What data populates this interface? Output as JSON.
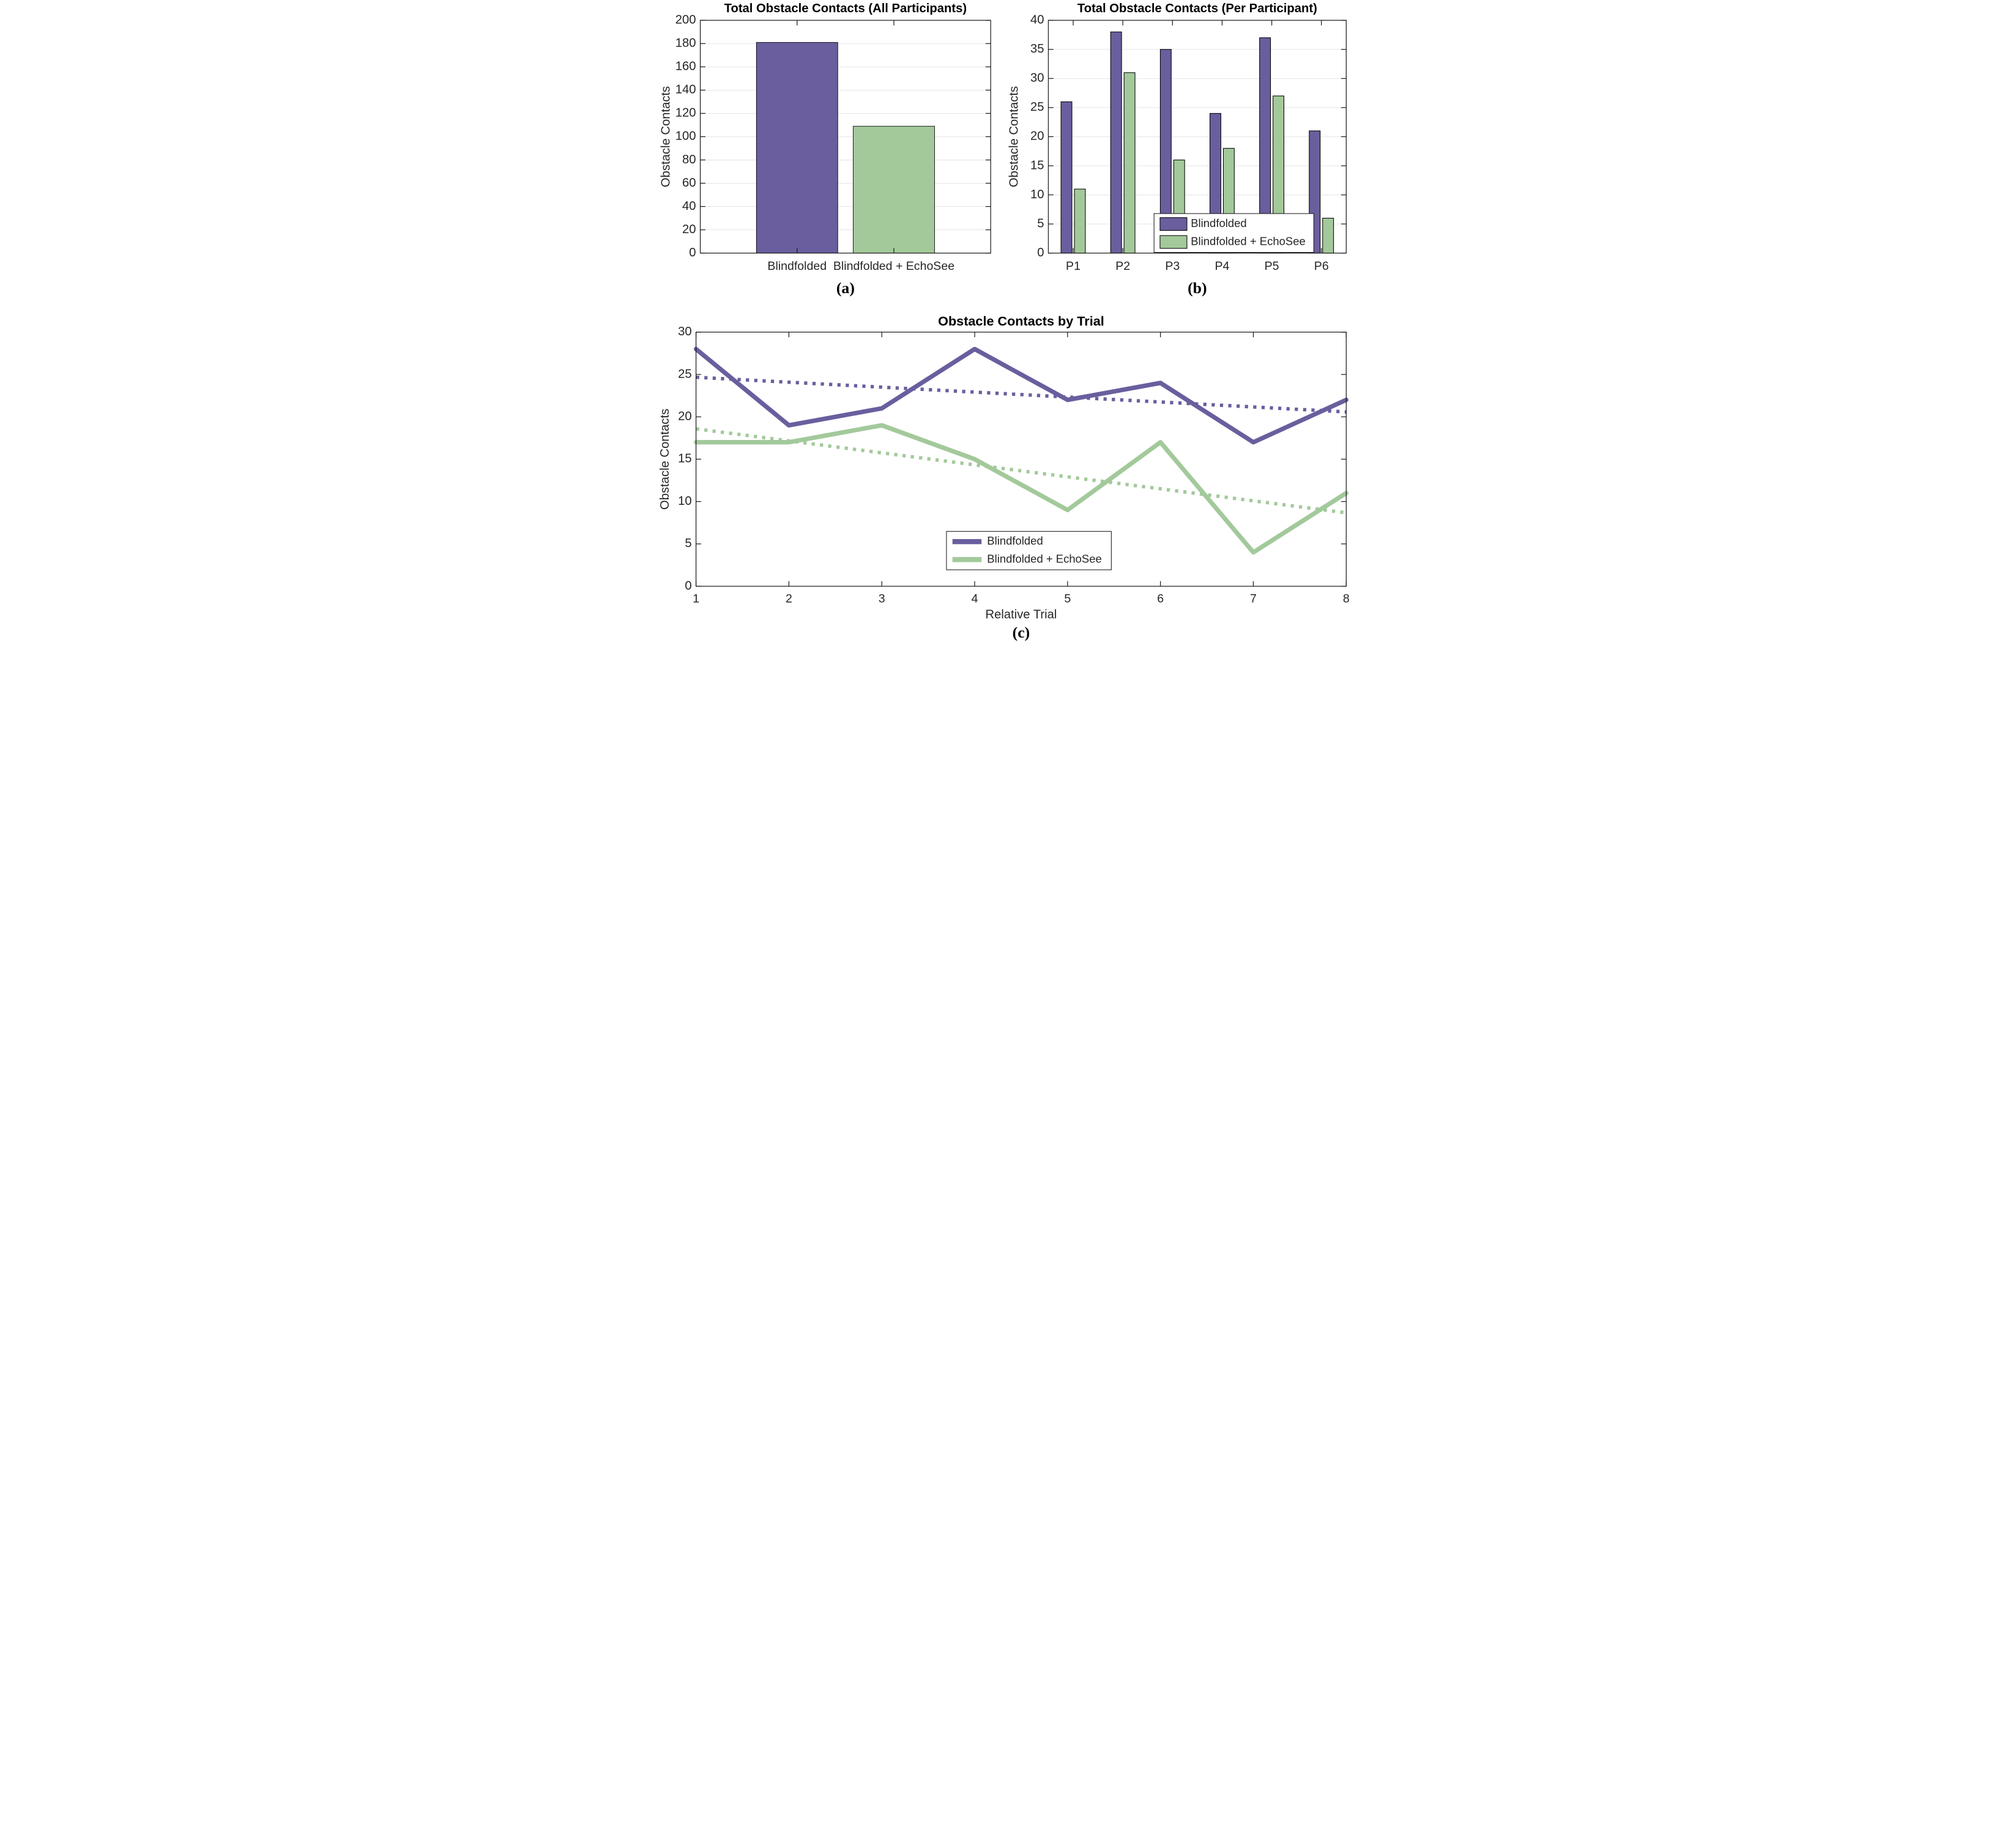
{
  "figure": {
    "background": "#FFFFFF",
    "captions": {
      "a": "(a)",
      "b": "(b)",
      "c": "(c)"
    }
  },
  "colors": {
    "blindfolded": "#6A5E9E",
    "echosee": "#A3C99B",
    "grid": "#E1E1E1",
    "axis": "#1A1A1A",
    "text": "#262626",
    "title": "#000000",
    "bar_edge": "#000000",
    "legend_bg": "#FFFFFF"
  },
  "legend_labels": [
    "Blindfolded",
    "Blindfolded + EchoSee"
  ],
  "chart_data": [
    {
      "id": "a",
      "type": "bar",
      "title": "Total Obstacle Contacts (All Participants)",
      "ylabel": "Obstacle Contacts",
      "xlabel": "",
      "categories": [
        "Blindfolded",
        "Blindfolded + EchoSee"
      ],
      "values": [
        181,
        109
      ],
      "bar_colors": [
        "#6A5E9E",
        "#A3C99B"
      ],
      "ylim": [
        0,
        200
      ],
      "ytick_step": 20,
      "grid": true,
      "legend": null,
      "caption": "(a)"
    },
    {
      "id": "b",
      "type": "bar",
      "title": "Total Obstacle Contacts (Per Participant)",
      "ylabel": "Obstacle Contacts",
      "xlabel": "",
      "categories": [
        "P1",
        "P2",
        "P3",
        "P4",
        "P5",
        "P6"
      ],
      "series": [
        {
          "name": "Blindfolded",
          "values": [
            26,
            38,
            35,
            24,
            37,
            21
          ],
          "color": "#6A5E9E"
        },
        {
          "name": "Blindfolded + EchoSee",
          "values": [
            11,
            31,
            16,
            18,
            27,
            6
          ],
          "color": "#A3C99B"
        }
      ],
      "ylim": [
        0,
        40
      ],
      "ytick_step": 5,
      "grid": true,
      "legend": {
        "position": "inside-bottom-center",
        "entries": [
          "Blindfolded",
          "Blindfolded + EchoSee"
        ]
      },
      "caption": "(b)"
    },
    {
      "id": "c",
      "type": "line",
      "title": "Obstacle Contacts by Trial",
      "ylabel": "Obstacle Contacts",
      "xlabel": "Relative Trial",
      "x": [
        1,
        2,
        3,
        4,
        5,
        6,
        7,
        8
      ],
      "xticks": [
        1,
        2,
        3,
        4,
        5,
        6,
        7,
        8
      ],
      "xlim": [
        1,
        8
      ],
      "ylim": [
        0,
        30
      ],
      "ytick_step": 5,
      "grid": false,
      "series": [
        {
          "name": "Blindfolded",
          "values": [
            28,
            19,
            21,
            28,
            22,
            24,
            17,
            22
          ],
          "color": "#6A5E9E",
          "style": "solid"
        },
        {
          "name": "Blindfolded + EchoSee",
          "values": [
            17,
            17,
            19,
            15,
            9,
            17,
            4,
            11
          ],
          "color": "#A3C99B",
          "style": "solid"
        },
        {
          "name": "Blindfolded trend",
          "x": [
            1,
            8
          ],
          "values": [
            24.67,
            20.58
          ],
          "color": "#6A5E9E",
          "style": "dotted"
        },
        {
          "name": "Blindfolded + EchoSee trend",
          "x": [
            1,
            8
          ],
          "values": [
            18.58,
            8.67
          ],
          "color": "#A3C99B",
          "style": "dotted"
        }
      ],
      "legend": {
        "position": "inside-bottom-center",
        "entries": [
          "Blindfolded",
          "Blindfolded + EchoSee"
        ]
      },
      "caption": "(c)"
    }
  ]
}
